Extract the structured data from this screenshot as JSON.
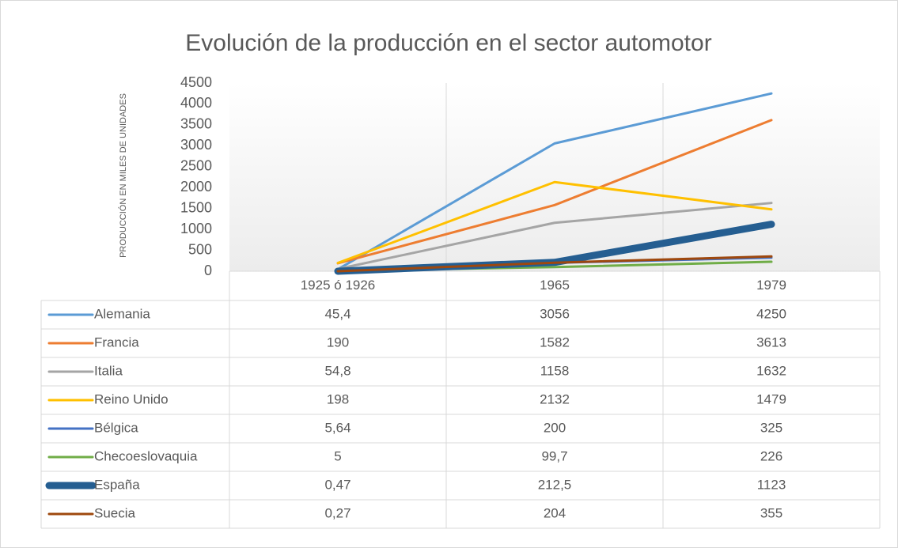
{
  "chart_data": {
    "type": "line",
    "title": "Evolución de la producción en el sector automotor",
    "y_axis_label": "PRODUCCIÓN EN MILES DE UNIDADES",
    "categories": [
      "1925 ó 1926",
      "1965",
      "1979"
    ],
    "ylim": [
      0,
      4500
    ],
    "yticks": [
      0,
      500,
      1000,
      1500,
      2000,
      2500,
      3000,
      3500,
      4000,
      4500
    ],
    "series": [
      {
        "name": "Alemania",
        "color": "#5b9bd5",
        "line_width": 3,
        "values": [
          45.4,
          3056,
          4250
        ],
        "value_labels": [
          "45,4",
          "3056",
          "4250"
        ]
      },
      {
        "name": "Francia",
        "color": "#ed7d31",
        "line_width": 3,
        "values": [
          190,
          1582,
          3613
        ],
        "value_labels": [
          "190",
          "1582",
          "3613"
        ]
      },
      {
        "name": "Italia",
        "color": "#a5a5a5",
        "line_width": 3,
        "values": [
          54.8,
          1158,
          1632
        ],
        "value_labels": [
          "54,8",
          "1158",
          "1632"
        ]
      },
      {
        "name": "Reino Unido",
        "color": "#ffc000",
        "line_width": 3,
        "values": [
          198,
          2132,
          1479
        ],
        "value_labels": [
          "198",
          "2132",
          "1479"
        ]
      },
      {
        "name": "Bélgica",
        "color": "#4472c4",
        "line_width": 3,
        "values": [
          5.64,
          200,
          325
        ],
        "value_labels": [
          "5,64",
          "200",
          "325"
        ]
      },
      {
        "name": "Checoeslovaquia",
        "color": "#70ad47",
        "line_width": 3,
        "values": [
          5,
          99.7,
          226
        ],
        "value_labels": [
          "5",
          "99,7",
          "226"
        ]
      },
      {
        "name": "España",
        "color": "#255e91",
        "line_width": 9,
        "values": [
          0.47,
          212.5,
          1123
        ],
        "value_labels": [
          "0,47",
          "212,5",
          "1123"
        ]
      },
      {
        "name": "Suecia",
        "color": "#9e480e",
        "line_width": 3,
        "values": [
          0.27,
          204,
          355
        ],
        "value_labels": [
          "0,27",
          "204",
          "355"
        ]
      }
    ]
  }
}
